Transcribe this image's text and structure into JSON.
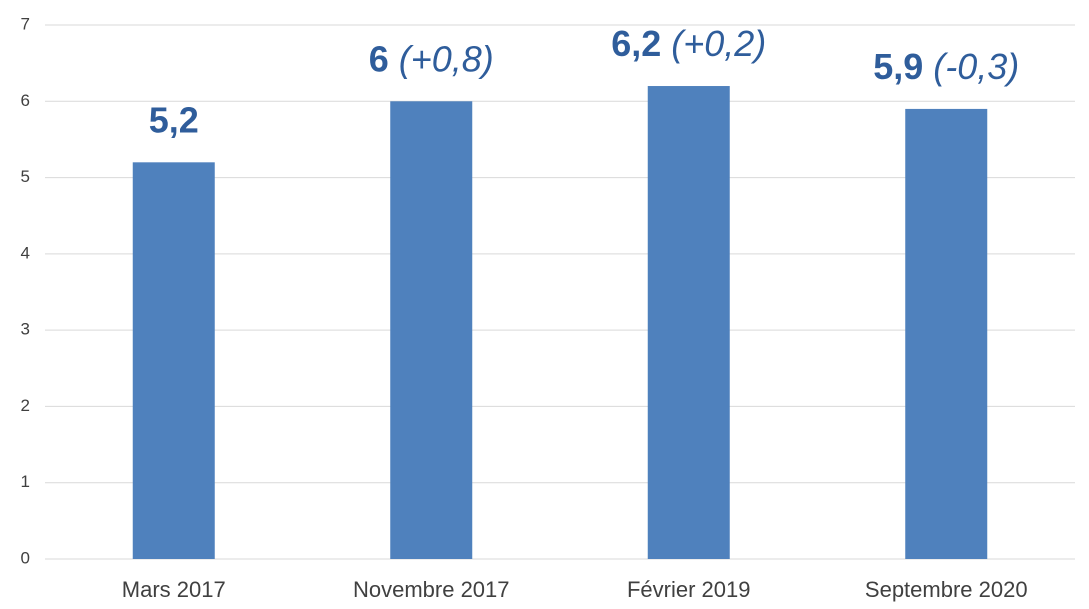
{
  "chart_data": {
    "type": "bar",
    "categories": [
      "Mars 2017",
      "Novembre 2017",
      "Février 2019",
      "Septembre 2020"
    ],
    "values": [
      5.2,
      6,
      6.2,
      5.9
    ],
    "value_labels": [
      "5,2",
      "6",
      "6,2",
      "5,9"
    ],
    "value_changes": [
      null,
      "(+0,8)",
      "(+0,2)",
      "(-0,3)"
    ],
    "color": "#4f81bd",
    "label_color": "#2f5d9b",
    "ylim": [
      0,
      7
    ],
    "yticks": [
      0,
      1,
      2,
      3,
      4,
      5,
      6,
      7
    ],
    "grid": true
  }
}
